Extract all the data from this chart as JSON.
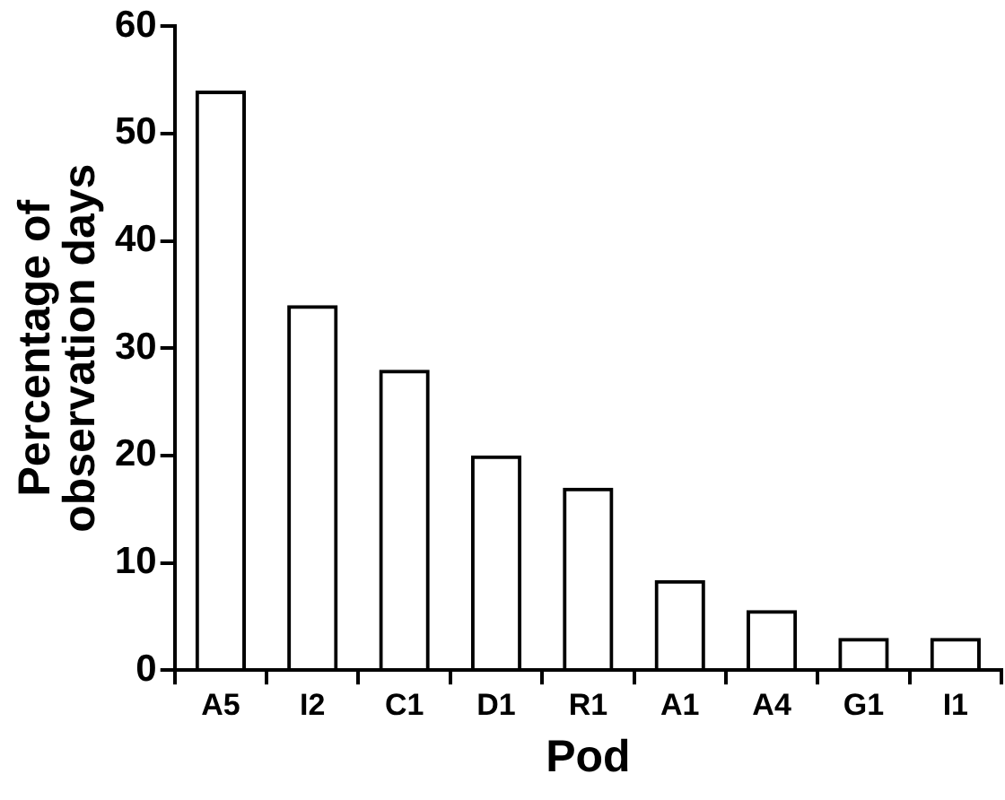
{
  "chart_data": {
    "type": "bar",
    "xlabel": "Pod",
    "ylabel": "Percentage of\nobservation days",
    "categories": [
      "A5",
      "I2",
      "C1",
      "D1",
      "R1",
      "A1",
      "A4",
      "G1",
      "I1"
    ],
    "values": [
      54,
      34,
      28,
      20,
      17,
      8.4,
      5.6,
      3,
      3
    ],
    "color": "#000000",
    "ylim": [
      0,
      60
    ],
    "yticks": [
      0,
      10,
      20,
      30,
      40,
      50,
      60
    ],
    "grid": false,
    "legend": false
  }
}
